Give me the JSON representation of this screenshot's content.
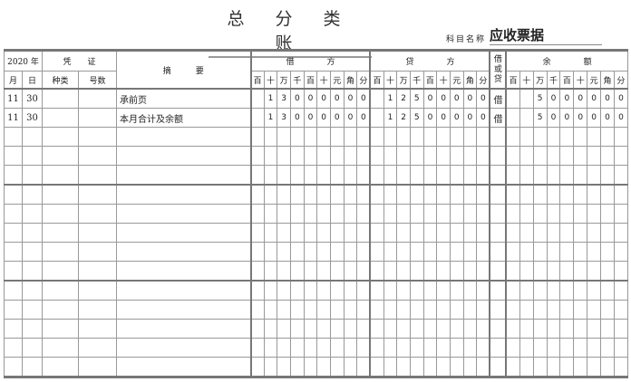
{
  "title": "总 分 类 账",
  "subject_label": "科目名称",
  "subject_value": "应收票据",
  "header": {
    "year": "2020 年",
    "voucher": "凭　　证",
    "month": "月",
    "day": "日",
    "voucher_type": "种类",
    "voucher_no": "号数",
    "summary": "摘　　　要",
    "debit": "借　　　　方",
    "credit": "贷　　　　方",
    "dr_or_cr": "借或贷",
    "balance": "余　　　　额",
    "digit_units": [
      "百",
      "十",
      "万",
      "千",
      "百",
      "十",
      "元",
      "角",
      "分"
    ]
  },
  "rows": [
    {
      "month": "11",
      "day": "30",
      "type": "",
      "no": "",
      "summary": "承前页",
      "debit": [
        "",
        "1",
        "3",
        "0",
        "0",
        "0",
        "0",
        "0",
        "0"
      ],
      "credit": [
        "",
        "1",
        "2",
        "5",
        "0",
        "0",
        "0",
        "0",
        "0"
      ],
      "dc": "借",
      "balance": [
        "",
        "",
        "5",
        "0",
        "0",
        "0",
        "0",
        "0",
        "0"
      ]
    },
    {
      "month": "11",
      "day": "30",
      "type": "",
      "no": "",
      "summary": "本月合计及余额",
      "debit": [
        "",
        "1",
        "3",
        "0",
        "0",
        "0",
        "0",
        "0",
        "0"
      ],
      "credit": [
        "",
        "1",
        "2",
        "5",
        "0",
        "0",
        "0",
        "0",
        "0"
      ],
      "dc": "借",
      "balance": [
        "",
        "",
        "5",
        "0",
        "0",
        "0",
        "0",
        "0",
        "0"
      ]
    }
  ],
  "empty_rows": 13
}
